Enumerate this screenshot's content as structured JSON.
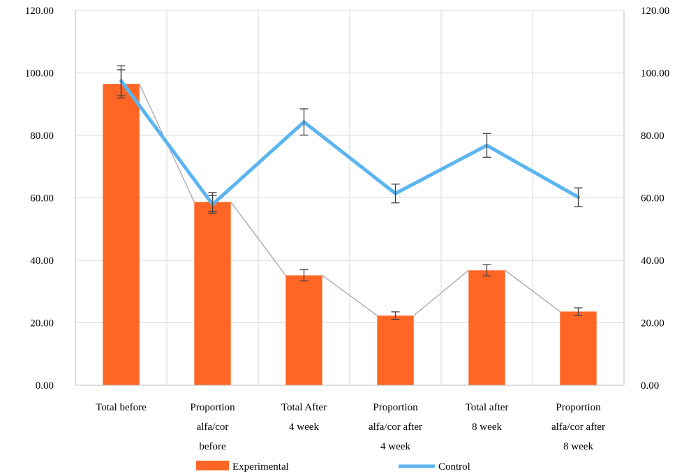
{
  "chart_data": {
    "type": "bar",
    "categories": [
      [
        "Total before"
      ],
      [
        "Proportion",
        "alfa/cor",
        "before"
      ],
      [
        "Total After",
        "4 week"
      ],
      [
        "Proportion",
        "alfa/cor after",
        "4 week"
      ],
      [
        "Total after",
        "8 week"
      ],
      [
        "Proportion",
        "alfa/cor after",
        "8 week"
      ]
    ],
    "yticks": [
      "0.00",
      "20.00",
      "40.00",
      "60.00",
      "80.00",
      "100.00",
      "120.00"
    ],
    "ylim": [
      0,
      120
    ],
    "y2lim": [
      0,
      120
    ],
    "grid": true,
    "legend_position": "bottom",
    "series": [
      {
        "name": "Experimental",
        "type": "bar",
        "color": "#FF6626",
        "values": [
          96.5,
          58.7,
          35.2,
          22.3,
          36.8,
          23.6
        ],
        "error": [
          4.5,
          3.0,
          1.8,
          1.2,
          1.8,
          1.2
        ]
      },
      {
        "name": "Control",
        "type": "line",
        "color": "#5BB5F0",
        "values": [
          97.5,
          57.9,
          84.3,
          61.4,
          76.8,
          60.2
        ],
        "error": [
          4.8,
          2.8,
          4.2,
          3.0,
          3.8,
          3.0
        ]
      }
    ]
  }
}
